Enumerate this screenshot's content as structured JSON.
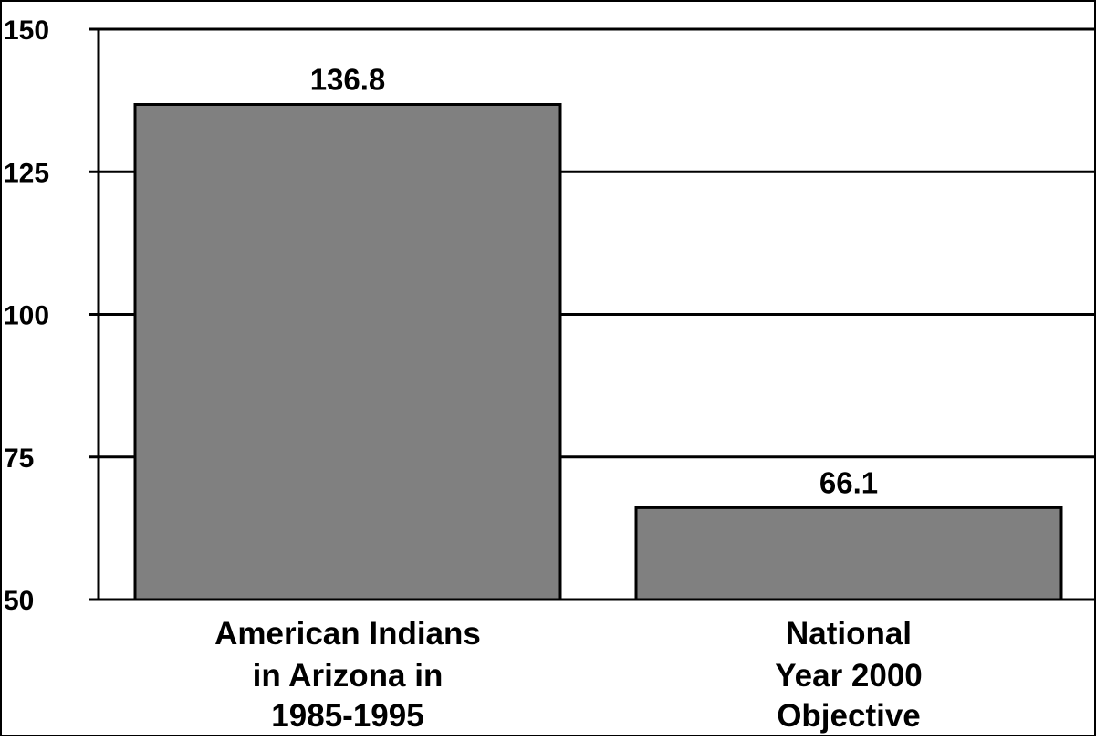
{
  "chart_data": {
    "type": "bar",
    "categories": [
      [
        "American Indians",
        "in Arizona in",
        "1985-1995"
      ],
      [
        "National",
        "Year 2000",
        "Objective"
      ]
    ],
    "values": [
      136.8,
      66.1
    ],
    "data_labels": [
      "136.8",
      "66.1"
    ],
    "ylim": [
      50,
      150
    ],
    "yticks": [
      50,
      75,
      100,
      125,
      150
    ],
    "ytick_labels": [
      "50",
      "75",
      "100",
      "125",
      "150"
    ],
    "title": "",
    "xlabel": "",
    "ylabel": "",
    "grid": true,
    "legend": "none",
    "colors": {
      "bar_fill": "#808080",
      "bar_stroke": "#000000",
      "grid": "#000000",
      "background": "#ffffff"
    }
  }
}
